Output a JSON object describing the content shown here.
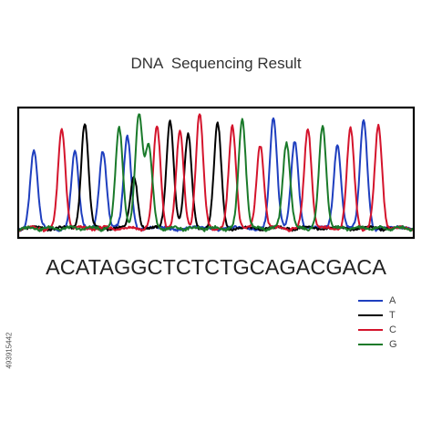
{
  "title": "DNA  Sequencing Result",
  "sequence": "ACATAGGCTCTCTGCAGACGACA",
  "stock_id": "493915442",
  "colors": {
    "A": "#1f3fbf",
    "T": "#000000",
    "C": "#d4142c",
    "G": "#1a7a2a"
  },
  "legend": [
    {
      "base": "A",
      "label": "A",
      "color": "#1f3fbf"
    },
    {
      "base": "T",
      "label": "T",
      "color": "#000000"
    },
    {
      "base": "C",
      "label": "C",
      "color": "#d4142c"
    },
    {
      "base": "G",
      "label": "G",
      "color": "#1a7a2a"
    }
  ],
  "chart_data": {
    "type": "line",
    "title": "DNA  Sequencing Result",
    "xlabel": "",
    "ylabel": "",
    "grid": false,
    "legend_position": "bottom-right",
    "ylim": [
      0,
      1
    ],
    "xlim": [
      0,
      24
    ],
    "peaks": [
      {
        "base": "A",
        "x": 0.9,
        "height": 0.62
      },
      {
        "base": "C",
        "x": 2.6,
        "height": 0.8
      },
      {
        "base": "A",
        "x": 3.4,
        "height": 0.62
      },
      {
        "base": "T",
        "x": 4.0,
        "height": 0.85
      },
      {
        "base": "A",
        "x": 5.1,
        "height": 0.63
      },
      {
        "base": "G",
        "x": 6.1,
        "height": 0.82
      },
      {
        "base": "A",
        "x": 6.6,
        "height": 0.74
      },
      {
        "base": "T",
        "x": 7.0,
        "height": 0.42
      },
      {
        "base": "G",
        "x": 7.3,
        "height": 0.91
      },
      {
        "base": "G",
        "x": 7.9,
        "height": 0.65
      },
      {
        "base": "C",
        "x": 8.4,
        "height": 0.82
      },
      {
        "base": "T",
        "x": 9.2,
        "height": 0.88
      },
      {
        "base": "C",
        "x": 9.8,
        "height": 0.78
      },
      {
        "base": "T",
        "x": 10.3,
        "height": 0.75
      },
      {
        "base": "C",
        "x": 11.0,
        "height": 0.92
      },
      {
        "base": "T",
        "x": 12.1,
        "height": 0.84
      },
      {
        "base": "C",
        "x": 13.0,
        "height": 0.82
      },
      {
        "base": "G",
        "x": 13.6,
        "height": 0.88
      },
      {
        "base": "C",
        "x": 14.7,
        "height": 0.67
      },
      {
        "base": "A",
        "x": 15.5,
        "height": 0.88
      },
      {
        "base": "G",
        "x": 16.3,
        "height": 0.7
      },
      {
        "base": "A",
        "x": 16.8,
        "height": 0.71
      },
      {
        "base": "C",
        "x": 17.6,
        "height": 0.8
      },
      {
        "base": "G",
        "x": 18.5,
        "height": 0.82
      },
      {
        "base": "A",
        "x": 19.4,
        "height": 0.68
      },
      {
        "base": "C",
        "x": 20.2,
        "height": 0.8
      },
      {
        "base": "A",
        "x": 21.0,
        "height": 0.87
      },
      {
        "base": "C",
        "x": 21.9,
        "height": 0.82
      }
    ]
  }
}
